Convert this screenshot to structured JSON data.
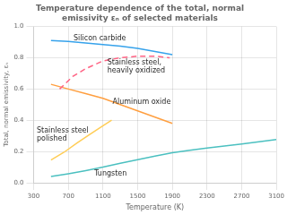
{
  "chart_data": {
    "type": "line",
    "title": "Temperature dependence of the total, normal\nemissivity εₙ of selected materials",
    "xlabel": "Temperature (K)",
    "ylabel": "Total, normal emissivity, εₙ",
    "xlim": [
      300,
      3100
    ],
    "ylim": [
      0,
      1
    ],
    "xticks": [
      300,
      700,
      1100,
      1500,
      1900,
      2300,
      2700,
      3100
    ],
    "yticks": [
      {
        "value": 0,
        "label": "0.0"
      },
      0.2,
      0.4,
      0.6,
      0.8,
      {
        "value": 1,
        "label": "1.0"
      }
    ],
    "grid": true,
    "series": [
      {
        "name": "Silicon carbide",
        "line_style": "solid",
        "x": [
          500,
          700,
          900,
          1100,
          1300,
          1500,
          1700,
          1900
        ],
        "values": [
          0.91,
          0.905,
          0.895,
          0.885,
          0.875,
          0.86,
          0.84,
          0.82
        ]
      },
      {
        "name": "Stainless steel,\nheavily oxidized",
        "line_style": "dashed",
        "x": [
          600,
          750,
          900,
          1100,
          1300,
          1500,
          1700,
          1870
        ],
        "values": [
          0.6,
          0.68,
          0.73,
          0.78,
          0.8,
          0.81,
          0.81,
          0.8
        ]
      },
      {
        "name": "Aluminum oxide",
        "line_style": "solid",
        "x": [
          500,
          700,
          900,
          1100,
          1300,
          1500,
          1700,
          1900
        ],
        "values": [
          0.63,
          0.6,
          0.57,
          0.54,
          0.5,
          0.46,
          0.42,
          0.38
        ]
      },
      {
        "name": "Stainless steel\npolished",
        "line_style": "solid",
        "x": [
          500,
          650,
          800,
          950,
          1100,
          1200
        ],
        "values": [
          0.145,
          0.195,
          0.255,
          0.31,
          0.365,
          0.4
        ]
      },
      {
        "name": "Tungsten",
        "line_style": "solid",
        "x": [
          500,
          700,
          900,
          1100,
          1300,
          1500,
          1700,
          1900,
          2100,
          2300,
          2500,
          2700,
          2900,
          3100
        ],
        "values": [
          0.04,
          0.058,
          0.078,
          0.1,
          0.125,
          0.148,
          0.17,
          0.192,
          0.208,
          0.222,
          0.235,
          0.248,
          0.262,
          0.276
        ]
      }
    ],
    "annotations": [
      {
        "text": "Silicon carbide",
        "x": 760,
        "y": 0.925
      },
      {
        "text": "Stainless steel,\nheavily oxidized",
        "x": 1150,
        "y": 0.745
      },
      {
        "text": "Aluminum oxide",
        "x": 1210,
        "y": 0.515
      },
      {
        "text": "Stainless steel\npolished",
        "x": 335,
        "y": 0.305
      },
      {
        "text": "Tungsten",
        "x": 1000,
        "y": 0.06
      }
    ]
  }
}
